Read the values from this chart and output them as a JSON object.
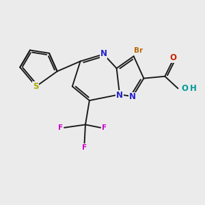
{
  "bg_color": "#ebebeb",
  "bond_color": "#1a1a1a",
  "N_color": "#2222cc",
  "S_color": "#aaaa00",
  "F_color": "#cc00cc",
  "Br_color": "#bb6600",
  "O_color": "#cc2200",
  "OH_color": "#009999",
  "lw": 1.4,
  "fs": 8.5,
  "fs_small": 7.5,
  "xlim": [
    0,
    10
  ],
  "ylim": [
    0,
    10
  ]
}
